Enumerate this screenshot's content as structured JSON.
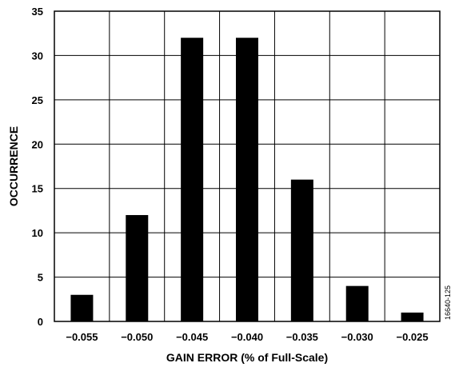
{
  "chart_data": {
    "type": "bar",
    "categories": [
      "−0.055",
      "−0.050",
      "−0.045",
      "−0.040",
      "−0.035",
      "−0.030",
      "−0.025"
    ],
    "values": [
      3,
      12,
      32,
      32,
      16,
      4,
      1
    ],
    "title": "",
    "xlabel": "GAIN ERROR (% of Full-Scale)",
    "ylabel": "OCCURRENCE",
    "ylim": [
      0,
      35
    ],
    "yticks": [
      "0",
      "5",
      "10",
      "15",
      "20",
      "25",
      "30",
      "35"
    ],
    "grid": true,
    "bar_color": "#000000",
    "figure_id": "16640-125"
  }
}
